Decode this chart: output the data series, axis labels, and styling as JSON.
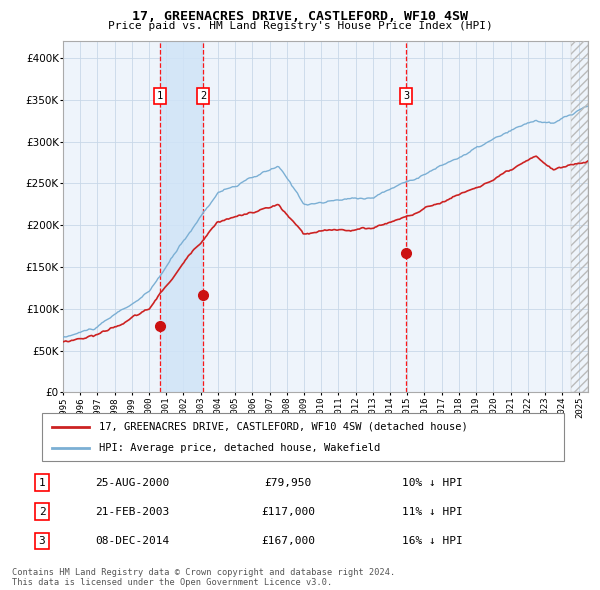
{
  "title": "17, GREENACRES DRIVE, CASTLEFORD, WF10 4SW",
  "subtitle": "Price paid vs. HM Land Registry's House Price Index (HPI)",
  "legend_line1": "17, GREENACRES DRIVE, CASTLEFORD, WF10 4SW (detached house)",
  "legend_line2": "HPI: Average price, detached house, Wakefield",
  "transactions": [
    {
      "num": 1,
      "date": "25-AUG-2000",
      "year": 2000.65,
      "price": 79950,
      "pct": "10%",
      "dir": "↓"
    },
    {
      "num": 2,
      "date": "21-FEB-2003",
      "year": 2003.13,
      "price": 117000,
      "pct": "11%",
      "dir": "↓"
    },
    {
      "num": 3,
      "date": "08-DEC-2014",
      "year": 2014.93,
      "price": 167000,
      "pct": "16%",
      "dir": "↓"
    }
  ],
  "footnote1": "Contains HM Land Registry data © Crown copyright and database right 2024.",
  "footnote2": "This data is licensed under the Open Government Licence v3.0.",
  "hpi_color": "#7bafd4",
  "price_color": "#cc2222",
  "marker_color": "#cc1111",
  "shade_color": "#d0e4f7",
  "grid_color": "#c8d8e8",
  "bg_color": "#ffffff",
  "plot_bg_color": "#eef4fb",
  "ylim": [
    0,
    420000
  ],
  "yticks": [
    0,
    50000,
    100000,
    150000,
    200000,
    250000,
    300000,
    350000,
    400000
  ],
  "xstart": 1995,
  "xend": 2025.5
}
